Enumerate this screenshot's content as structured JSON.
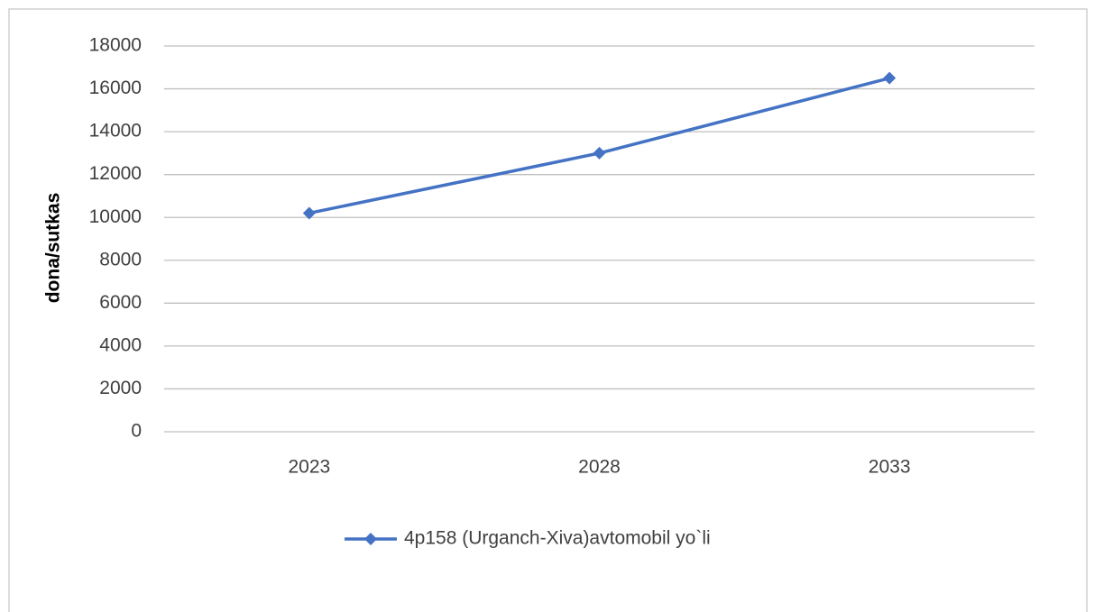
{
  "chart_data": {
    "type": "line",
    "y_label": "dona/sutkas",
    "categories": [
      "2023",
      "2028",
      "2033"
    ],
    "series": [
      {
        "name": "4p158 (Urganch-Xiva)avtomobil yo`li",
        "color": "#4472c4",
        "values": [
          10200,
          13000,
          16500
        ]
      }
    ],
    "ylim": [
      0,
      18000
    ],
    "yticks": [
      0,
      2000,
      4000,
      6000,
      8000,
      10000,
      12000,
      14000,
      16000,
      18000
    ],
    "grid": true,
    "legend": "bottom"
  }
}
